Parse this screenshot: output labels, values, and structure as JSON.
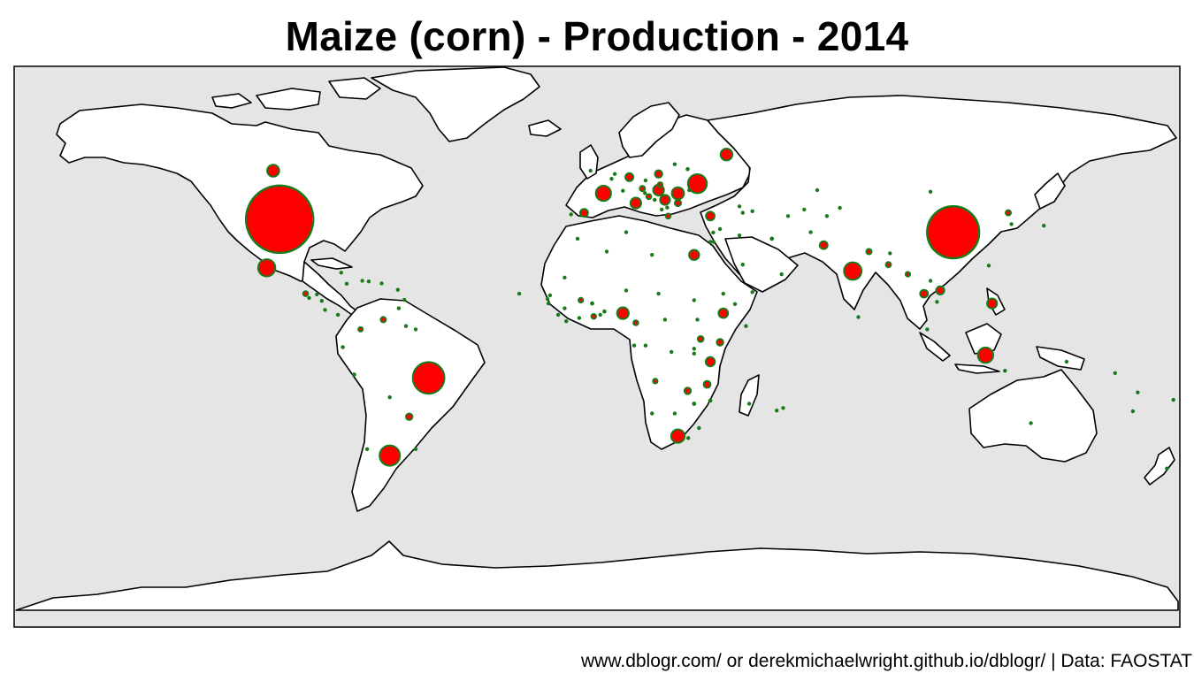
{
  "title": "Maize (corn) - Production - 2014",
  "caption": "www.dblogr.com/ or derekmichaelwright.github.io/dblogr/ | Data: FAOSTAT",
  "colors": {
    "ocean": "#e5e5e5",
    "land": "#ffffff",
    "border": "#000000",
    "bubble_fill": "#ff0000",
    "bubble_outline": "#1a7a1a"
  },
  "map_data": {
    "type": "bubble-map",
    "projection": "equirectangular",
    "variable": "Maize (corn) production",
    "year": 2014,
    "bubbles": [
      {
        "country": "United States",
        "lon": -98,
        "lat": 38,
        "value": 361.1
      },
      {
        "country": "China",
        "lon": 110,
        "lat": 34,
        "value": 215.8
      },
      {
        "country": "Brazil",
        "lon": -52,
        "lat": -11,
        "value": 80.0
      },
      {
        "country": "Argentina",
        "lon": -64,
        "lat": -35,
        "value": 33.0
      },
      {
        "country": "Ukraine",
        "lon": 31,
        "lat": 49,
        "value": 28.5
      },
      {
        "country": "India",
        "lon": 79,
        "lat": 22,
        "value": 24.3
      },
      {
        "country": "Mexico",
        "lon": -102,
        "lat": 23,
        "value": 23.3
      },
      {
        "country": "Indonesia",
        "lon": 120,
        "lat": -4,
        "value": 19.0
      },
      {
        "country": "France",
        "lon": 2,
        "lat": 46,
        "value": 18.5
      },
      {
        "country": "South Africa",
        "lon": 25,
        "lat": -29,
        "value": 14.3
      },
      {
        "country": "Canada",
        "lon": -100,
        "lat": 53,
        "value": 11.5
      },
      {
        "country": "Russia",
        "lon": 40,
        "lat": 58,
        "value": 11.3
      },
      {
        "country": "Romania",
        "lon": 25,
        "lat": 46,
        "value": 11.9
      },
      {
        "country": "Hungary",
        "lon": 19,
        "lat": 47,
        "value": 9.3
      },
      {
        "country": "Serbia",
        "lon": 21,
        "lat": 44,
        "value": 7.9
      },
      {
        "country": "Egypt",
        "lon": 30,
        "lat": 27,
        "value": 8.1
      },
      {
        "country": "Nigeria",
        "lon": 8,
        "lat": 9,
        "value": 10.8
      },
      {
        "country": "Ethiopia",
        "lon": 39,
        "lat": 9,
        "value": 7.2
      },
      {
        "country": "Philippines",
        "lon": 122,
        "lat": 12,
        "value": 7.8
      },
      {
        "country": "Italy",
        "lon": 12,
        "lat": 43,
        "value": 9.2
      },
      {
        "country": "Spain",
        "lon": -4,
        "lat": 40,
        "value": 4.8
      },
      {
        "country": "Germany",
        "lon": 10,
        "lat": 51,
        "value": 5.1
      },
      {
        "country": "Poland",
        "lon": 19,
        "lat": 52,
        "value": 4.5
      },
      {
        "country": "Bulgaria",
        "lon": 25,
        "lat": 43,
        "value": 3.1
      },
      {
        "country": "Austria",
        "lon": 14,
        "lat": 47.5,
        "value": 2.3
      },
      {
        "country": "Croatia",
        "lon": 16,
        "lat": 45,
        "value": 2.0
      },
      {
        "country": "Thailand",
        "lon": 101,
        "lat": 15,
        "value": 4.8
      },
      {
        "country": "Vietnam",
        "lon": 106,
        "lat": 16,
        "value": 5.2
      },
      {
        "country": "Pakistan",
        "lon": 70,
        "lat": 30,
        "value": 4.9
      },
      {
        "country": "Tanzania",
        "lon": 35,
        "lat": -6,
        "value": 6.7
      },
      {
        "country": "Kenya",
        "lon": 38,
        "lat": 0,
        "value": 3.5
      },
      {
        "country": "Malawi",
        "lon": 34,
        "lat": -13,
        "value": 3.9
      },
      {
        "country": "Zambia",
        "lon": 28,
        "lat": -15,
        "value": 3.4
      },
      {
        "country": "Paraguay",
        "lon": -58,
        "lat": -23,
        "value": 3.4
      },
      {
        "country": "Peru",
        "lon": -75,
        "lat": -10,
        "value": 1.5
      },
      {
        "country": "Colombia",
        "lon": -73,
        "lat": 4,
        "value": 1.6
      },
      {
        "country": "Venezuela",
        "lon": -66,
        "lat": 7,
        "value": 2.2
      },
      {
        "country": "North Korea",
        "lon": 127,
        "lat": 40,
        "value": 2.3
      },
      {
        "country": "Turkey",
        "lon": 35,
        "lat": 39,
        "value": 5.9
      },
      {
        "country": "Iran",
        "lon": 54,
        "lat": 32,
        "value": 1.5
      },
      {
        "country": "Ghana",
        "lon": -1,
        "lat": 8,
        "value": 1.8
      },
      {
        "country": "Mali",
        "lon": -5,
        "lat": 13,
        "value": 1.7
      },
      {
        "country": "Burkina Faso",
        "lon": -1.5,
        "lat": 12,
        "value": 1.4
      },
      {
        "country": "Uganda",
        "lon": 32,
        "lat": 1,
        "value": 2.8
      },
      {
        "country": "Mozambique",
        "lon": 35,
        "lat": -18,
        "value": 1.4
      },
      {
        "country": "Zimbabwe",
        "lon": 30,
        "lat": -19,
        "value": 1.4
      },
      {
        "country": "Cameroon",
        "lon": 12,
        "lat": 6,
        "value": 1.9
      },
      {
        "country": "Bolivia",
        "lon": -64,
        "lat": -17,
        "value": 1.0
      },
      {
        "country": "Chile",
        "lon": -71,
        "lat": -33,
        "value": 1.2
      },
      {
        "country": "Guatemala",
        "lon": -90,
        "lat": 15,
        "value": 1.9
      },
      {
        "country": "Nepal",
        "lon": 84,
        "lat": 28,
        "value": 2.3
      },
      {
        "country": "Bangladesh",
        "lon": 90,
        "lat": 24,
        "value": 2.1
      },
      {
        "country": "Myanmar",
        "lon": 96,
        "lat": 21,
        "value": 1.7
      },
      {
        "country": "Laos",
        "lon": 103,
        "lat": 19,
        "value": 1.1
      },
      {
        "country": "Cambodia",
        "lon": 105,
        "lat": 12.5,
        "value": 0.9
      },
      {
        "country": "Afghanistan",
        "lon": 66,
        "lat": 34,
        "value": 0.3
      },
      {
        "country": "Uzbekistan",
        "lon": 64,
        "lat": 41,
        "value": 0.4
      },
      {
        "country": "Kazakhstan",
        "lon": 68,
        "lat": 47,
        "value": 0.6
      },
      {
        "country": "Belgium",
        "lon": 4.5,
        "lat": 50.5,
        "value": 0.7
      },
      {
        "country": "Netherlands",
        "lon": 5.5,
        "lat": 52,
        "value": 0.3
      },
      {
        "country": "Czechia",
        "lon": 15,
        "lat": 50,
        "value": 0.8
      },
      {
        "country": "Slovakia",
        "lon": 19.5,
        "lat": 48.7,
        "value": 1.8
      },
      {
        "country": "Moldova",
        "lon": 28.5,
        "lat": 47,
        "value": 1.2
      },
      {
        "country": "Greece",
        "lon": 22,
        "lat": 39,
        "value": 1.9
      },
      {
        "country": "Portugal",
        "lon": -8,
        "lat": 39.5,
        "value": 0.9
      },
      {
        "country": "Switzerland",
        "lon": 8,
        "lat": 46.8,
        "value": 0.2
      },
      {
        "country": "Lithuania",
        "lon": 24,
        "lat": 55,
        "value": 0.4
      },
      {
        "country": "Belarus",
        "lon": 28,
        "lat": 53.5,
        "value": 1.3
      },
      {
        "country": "Georgia",
        "lon": 44,
        "lat": 42,
        "value": 0.3
      },
      {
        "country": "Azerbaijan",
        "lon": 48,
        "lat": 40.5,
        "value": 0.2
      },
      {
        "country": "Iraq",
        "lon": 44,
        "lat": 33,
        "value": 0.2
      },
      {
        "country": "Syria",
        "lon": 38,
        "lat": 35,
        "value": 0.3
      },
      {
        "country": "Israel",
        "lon": 35,
        "lat": 31,
        "value": 0.1
      },
      {
        "country": "Saudi Arabia",
        "lon": 45,
        "lat": 24,
        "value": 0.1
      },
      {
        "country": "Yemen",
        "lon": 48,
        "lat": 15.5,
        "value": 0.05
      },
      {
        "country": "Sudan",
        "lon": 30,
        "lat": 13,
        "value": 0.05
      },
      {
        "country": "South Sudan",
        "lon": 31,
        "lat": 7,
        "value": 0.1
      },
      {
        "country": "Chad",
        "lon": 19,
        "lat": 15,
        "value": 0.3
      },
      {
        "country": "Niger",
        "lon": 9,
        "lat": 16,
        "value": 0.05
      },
      {
        "country": "Algeria",
        "lon": 3,
        "lat": 28,
        "value": 0.01
      },
      {
        "country": "Morocco",
        "lon": -6,
        "lat": 32,
        "value": 0.2
      },
      {
        "country": "Senegal",
        "lon": -14.5,
        "lat": 14.5,
        "value": 0.2
      },
      {
        "country": "Guinea",
        "lon": -10,
        "lat": 10.5,
        "value": 0.7
      },
      {
        "country": "Sierra Leone",
        "lon": -12,
        "lat": 8.5,
        "value": 0.02
      },
      {
        "country": "Ivory Coast",
        "lon": -5.5,
        "lat": 7.5,
        "value": 0.8
      },
      {
        "country": "Togo",
        "lon": 1,
        "lat": 8.5,
        "value": 0.7
      },
      {
        "country": "Benin",
        "lon": 2.3,
        "lat": 9.5,
        "value": 1.3
      },
      {
        "country": "Central African Rep.",
        "lon": 21,
        "lat": 7,
        "value": 0.1
      },
      {
        "country": "DR Congo",
        "lon": 23,
        "lat": -3,
        "value": 1.2
      },
      {
        "country": "Congo",
        "lon": 15,
        "lat": -1,
        "value": 0.01
      },
      {
        "country": "Gabon",
        "lon": 11.5,
        "lat": -1,
        "value": 0.04
      },
      {
        "country": "Angola",
        "lon": 18,
        "lat": -12,
        "value": 1.7
      },
      {
        "country": "Namibia",
        "lon": 17,
        "lat": -22,
        "value": 0.05
      },
      {
        "country": "Botswana",
        "lon": 24,
        "lat": -22,
        "value": 0.02
      },
      {
        "country": "Lesotho",
        "lon": 28.2,
        "lat": -29.6,
        "value": 0.1
      },
      {
        "country": "Swaziland",
        "lon": 31.5,
        "lat": -26.5,
        "value": 0.1
      },
      {
        "country": "Madagascar",
        "lon": 47,
        "lat": -19,
        "value": 0.4
      },
      {
        "country": "Rwanda",
        "lon": 30,
        "lat": -2,
        "value": 0.6
      },
      {
        "country": "Burundi",
        "lon": 30,
        "lat": -3.5,
        "value": 0.2
      },
      {
        "country": "Somalia",
        "lon": 46,
        "lat": 5,
        "value": 0.1
      },
      {
        "country": "Eritrea",
        "lon": 39,
        "lat": 15,
        "value": 0.02
      },
      {
        "country": "Sri Lanka",
        "lon": 80.7,
        "lat": 7.8,
        "value": 0.2
      },
      {
        "country": "Bhutan",
        "lon": 90.5,
        "lat": 27.5,
        "value": 0.08
      },
      {
        "country": "Malaysia",
        "lon": 102,
        "lat": 4,
        "value": 0.05
      },
      {
        "country": "Timor-Leste",
        "lon": 126,
        "lat": -8.8,
        "value": 0.1
      },
      {
        "country": "Papua New Guinea",
        "lon": 145,
        "lat": -6,
        "value": 0.01
      },
      {
        "country": "Australia",
        "lon": 134,
        "lat": -25,
        "value": 0.5
      },
      {
        "country": "New Zealand",
        "lon": 176,
        "lat": -39,
        "value": 0.2
      },
      {
        "country": "Fiji",
        "lon": 178,
        "lat": -17.8,
        "value": 0.01
      },
      {
        "country": "Japan",
        "lon": 138,
        "lat": 36,
        "value": 0.01
      },
      {
        "country": "South Korea",
        "lon": 128,
        "lat": 36.5,
        "value": 0.08
      },
      {
        "country": "Taiwan",
        "lon": 121,
        "lat": 23.7,
        "value": 0.1
      },
      {
        "country": "Cuba",
        "lon": -79,
        "lat": 21.5,
        "value": 0.4
      },
      {
        "country": "Haiti",
        "lon": -72.5,
        "lat": 19,
        "value": 0.2
      },
      {
        "country": "Dominican Rep.",
        "lon": -70.5,
        "lat": 18.8,
        "value": 0.05
      },
      {
        "country": "Jamaica",
        "lon": -77.3,
        "lat": 18.1,
        "value": 0.001
      },
      {
        "country": "Honduras",
        "lon": -86.5,
        "lat": 14.8,
        "value": 0.6
      },
      {
        "country": "El Salvador",
        "lon": -88.9,
        "lat": 13.7,
        "value": 0.8
      },
      {
        "country": "Nicaragua",
        "lon": -85,
        "lat": 12.8,
        "value": 0.4
      },
      {
        "country": "Costa Rica",
        "lon": -84,
        "lat": 10,
        "value": 0.01
      },
      {
        "country": "Panama",
        "lon": -80,
        "lat": 8.5,
        "value": 0.1
      },
      {
        "country": "Ecuador",
        "lon": -78.5,
        "lat": -1.5,
        "value": 1.3
      },
      {
        "country": "Guyana",
        "lon": -59,
        "lat": 5,
        "value": 0.01
      },
      {
        "country": "Suriname",
        "lon": -56,
        "lat": 4,
        "value": 0.001
      },
      {
        "country": "Uruguay",
        "lon": -56,
        "lat": -33,
        "value": 0.4
      },
      {
        "country": "Puerto Rico",
        "lon": -66.5,
        "lat": 18.2,
        "value": 0.001
      },
      {
        "country": "Trinidad and Tobago",
        "lon": -61.2,
        "lat": 10.5,
        "value": 0.001
      },
      {
        "country": "Barbados",
        "lon": -59.5,
        "lat": 13.1,
        "value": 0.001
      },
      {
        "country": "Guadeloupe",
        "lon": -61.5,
        "lat": 16.2,
        "value": 0.001
      },
      {
        "country": "Cabo Verde",
        "lon": -24,
        "lat": 15,
        "value": 0.005
      },
      {
        "country": "Mauritius",
        "lon": 57.5,
        "lat": -20.3,
        "value": 0.001
      },
      {
        "country": "Reunion",
        "lon": 55.5,
        "lat": -21.1,
        "value": 0.01
      },
      {
        "country": "Vanuatu",
        "lon": 167,
        "lat": -15.5,
        "value": 0.001
      },
      {
        "country": "New Caledonia",
        "lon": 165.5,
        "lat": -21.3,
        "value": 0.001
      },
      {
        "country": "Solomon Islands",
        "lon": 160,
        "lat": -9.5,
        "value": 0.001
      },
      {
        "country": "Kyrgyzstan",
        "lon": 75,
        "lat": 41.5,
        "value": 0.6
      },
      {
        "country": "Tajikistan",
        "lon": 71,
        "lat": 39,
        "value": 0.2
      },
      {
        "country": "Turkmenistan",
        "lon": 59,
        "lat": 39,
        "value": 0.02
      },
      {
        "country": "Armenia",
        "lon": 45,
        "lat": 40,
        "value": 0.02
      },
      {
        "country": "Albania",
        "lon": 20,
        "lat": 41,
        "value": 0.4
      },
      {
        "country": "Macedonia",
        "lon": 21.7,
        "lat": 41.6,
        "value": 0.1
      },
      {
        "country": "Bosnia",
        "lon": 17.8,
        "lat": 44,
        "value": 0.9
      },
      {
        "country": "Slovenia",
        "lon": 14.8,
        "lat": 46.1,
        "value": 0.4
      },
      {
        "country": "United Kingdom",
        "lon": -2,
        "lat": 53,
        "value": 0.001
      },
      {
        "country": "Mongolia",
        "lon": 103,
        "lat": 46.5,
        "value": 0.001
      },
      {
        "country": "Lebanon",
        "lon": 35.9,
        "lat": 33.9,
        "value": 0.005
      },
      {
        "country": "Jordan",
        "lon": 36,
        "lat": 31,
        "value": 0.02
      },
      {
        "country": "Oman",
        "lon": 57,
        "lat": 21,
        "value": 0.001
      },
      {
        "country": "Tunisia",
        "lon": 9,
        "lat": 34,
        "value": 0.001
      },
      {
        "country": "Libya",
        "lon": 17,
        "lat": 27,
        "value": 0.001
      },
      {
        "country": "Mauritania",
        "lon": -10,
        "lat": 20,
        "value": 0.01
      },
      {
        "country": "Gambia",
        "lon": -15.3,
        "lat": 13.4,
        "value": 0.03
      },
      {
        "country": "Guinea-Bissau",
        "lon": -15,
        "lat": 12,
        "value": 0.01
      },
      {
        "country": "Liberia",
        "lon": -9.5,
        "lat": 6.5,
        "value": 0.001
      },
      {
        "country": "Djibouti",
        "lon": 42.6,
        "lat": 11.8,
        "value": 0.001
      }
    ]
  }
}
